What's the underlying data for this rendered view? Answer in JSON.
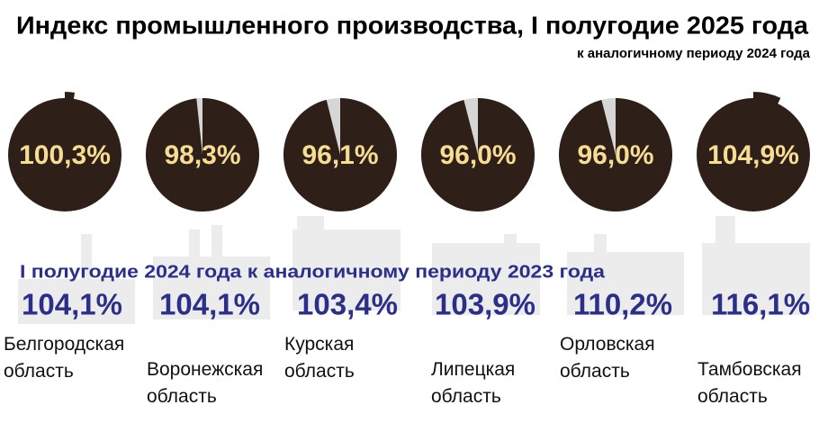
{
  "chart_data": {
    "type": "pie",
    "title": "Индекс промышленного производства, I полугодие 2025 года",
    "subtitle": "к аналогичному периоду 2024 года",
    "categories": [
      "Белгородская область",
      "Воронежская область",
      "Курская область",
      "Липецкая область",
      "Орловская область",
      "Тамбовская область"
    ],
    "series": [
      {
        "color": "#2e2018",
        "values": [
          100.3,
          98.3,
          96.1,
          96.0,
          96.0,
          104.9
        ],
        "value_labels": [
          "100,3%",
          "98,3%",
          "96,1%",
          "96,0%",
          "96,0%",
          "104,9%"
        ]
      },
      {
        "name": "I полугодие 2024 года к аналогичному периоду 2023 года",
        "color": "#2b2f8a",
        "values": [
          104.1,
          104.1,
          103.4,
          103.9,
          110.2,
          116.1
        ],
        "value_labels": [
          "104,1%",
          "104,1%",
          "103,4%",
          "103,9%",
          "110,2%",
          "116,1%"
        ]
      }
    ]
  }
}
